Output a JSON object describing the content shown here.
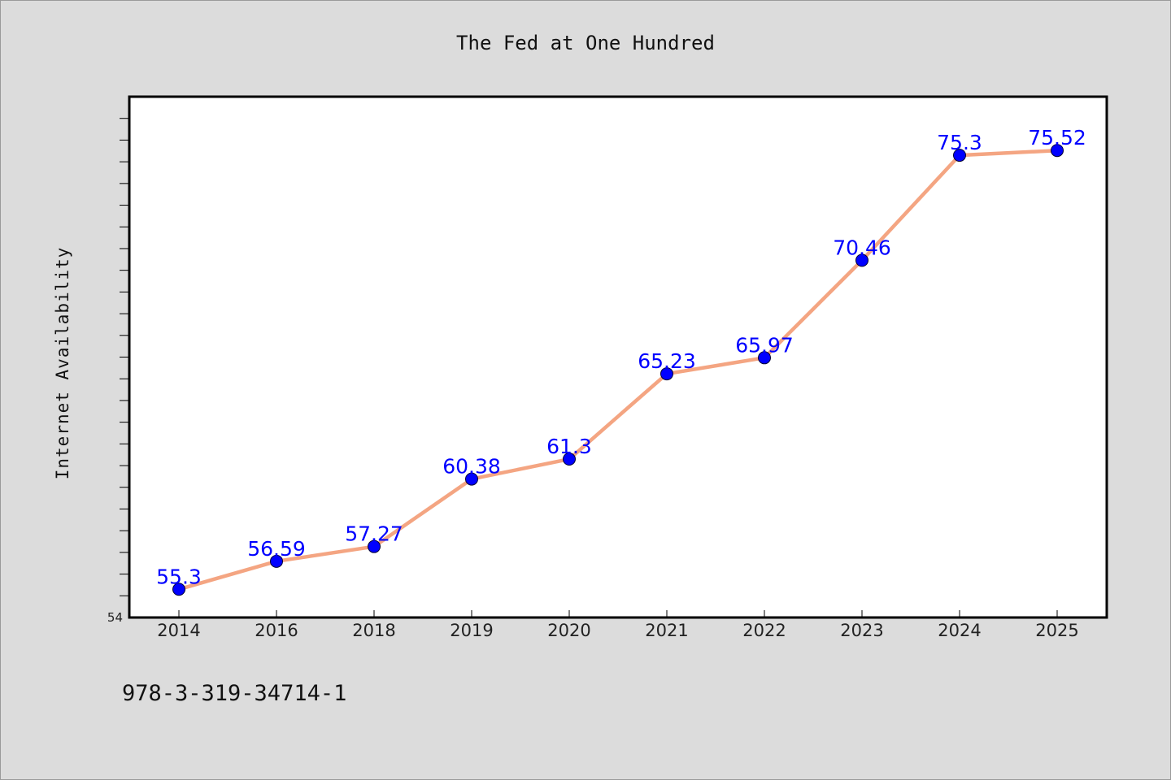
{
  "chart_data": {
    "type": "line",
    "title": "The Fed at One Hundred",
    "xlabel": "",
    "ylabel": "Internet Availability",
    "categories": [
      "2014",
      "2016",
      "2018",
      "2019",
      "2020",
      "2021",
      "2022",
      "2023",
      "2024",
      "2025"
    ],
    "series": [
      {
        "values": [
          55.3,
          56.59,
          57.27,
          60.38,
          61.3,
          65.23,
          65.97,
          70.46,
          75.3,
          75.52
        ],
        "labels": [
          "55.3",
          "56.59",
          "57.27",
          "60.38",
          "61.3",
          "65.23",
          "65.97",
          "70.46",
          "75.3",
          "75.52"
        ],
        "line_color": "#f4a582",
        "marker_color": "#0000ff"
      }
    ],
    "ylim": [
      54,
      78
    ],
    "yticks_labeled": [
      "54"
    ],
    "ytick_step": 1,
    "grid": false,
    "legend": "none"
  },
  "footnote": "978-3-319-34714-1"
}
